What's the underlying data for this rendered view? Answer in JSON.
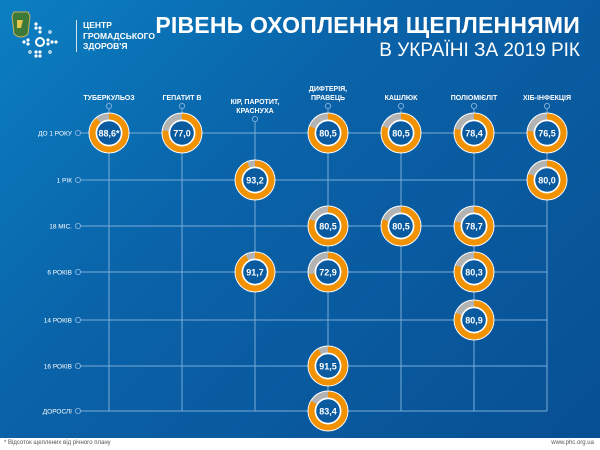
{
  "header": {
    "org_lines": [
      "ЦЕНТР",
      "ГРОМАДСЬКОГО",
      "ЗДОРОВ'Я"
    ],
    "title": "РІВЕНЬ ОХОПЛЕННЯ ЩЕПЛЕННЯМИ",
    "subtitle": "В УКРАЇНІ ЗА 2019 РІК"
  },
  "colors": {
    "ring": "#f39200",
    "remainder": "#b3b3b3",
    "grid": "#79acd8",
    "inner": "#0a5aa0"
  },
  "chart_data": {
    "type": "table",
    "columns": [
      [
        "ТУБЕРКУЛЬОЗ"
      ],
      [
        "ГЕПАТИТ В"
      ],
      [
        "КІР, ПАРОТИТ,",
        "КРАСНУХА"
      ],
      [
        "ДИФТЕРІЯ,",
        "ПРАВЕЦЬ"
      ],
      [
        "КАШЛЮК"
      ],
      [
        "ПОЛІОМІЄЛІТ"
      ],
      [
        "ХІБ-ІНФЕКЦІЯ"
      ]
    ],
    "rows": [
      "ДО 1 РОКУ",
      "1 РІК",
      "18 МІС.",
      "6 РОКІВ",
      "14 РОКІВ",
      "16 РОКІВ",
      "ДОРОСЛІ"
    ],
    "unit": "%",
    "cells": [
      {
        "row": 0,
        "col": 0,
        "value": 88.6,
        "label": "88,6*"
      },
      {
        "row": 0,
        "col": 1,
        "value": 77.0,
        "label": "77,0"
      },
      {
        "row": 0,
        "col": 3,
        "value": 80.5,
        "label": "80,5"
      },
      {
        "row": 0,
        "col": 4,
        "value": 80.5,
        "label": "80,5"
      },
      {
        "row": 0,
        "col": 5,
        "value": 78.4,
        "label": "78,4"
      },
      {
        "row": 0,
        "col": 6,
        "value": 76.5,
        "label": "76,5"
      },
      {
        "row": 1,
        "col": 2,
        "value": 93.2,
        "label": "93,2"
      },
      {
        "row": 1,
        "col": 6,
        "value": 80.0,
        "label": "80,0"
      },
      {
        "row": 2,
        "col": 3,
        "value": 80.5,
        "label": "80,5"
      },
      {
        "row": 2,
        "col": 4,
        "value": 80.5,
        "label": "80,5"
      },
      {
        "row": 2,
        "col": 5,
        "value": 78.7,
        "label": "78,7"
      },
      {
        "row": 3,
        "col": 2,
        "value": 91.7,
        "label": "91,7"
      },
      {
        "row": 3,
        "col": 3,
        "value": 72.9,
        "label": "72,9"
      },
      {
        "row": 3,
        "col": 5,
        "value": 80.3,
        "label": "80,3"
      },
      {
        "row": 4,
        "col": 5,
        "value": 80.9,
        "label": "80,9"
      },
      {
        "row": 5,
        "col": 3,
        "value": 91.5,
        "label": "91,5"
      },
      {
        "row": 6,
        "col": 3,
        "value": 83.4,
        "label": "83,4"
      }
    ]
  },
  "footer": {
    "footnote": "* Відсоток щеплених від річного плану",
    "site": "www.phc.org.ua"
  }
}
